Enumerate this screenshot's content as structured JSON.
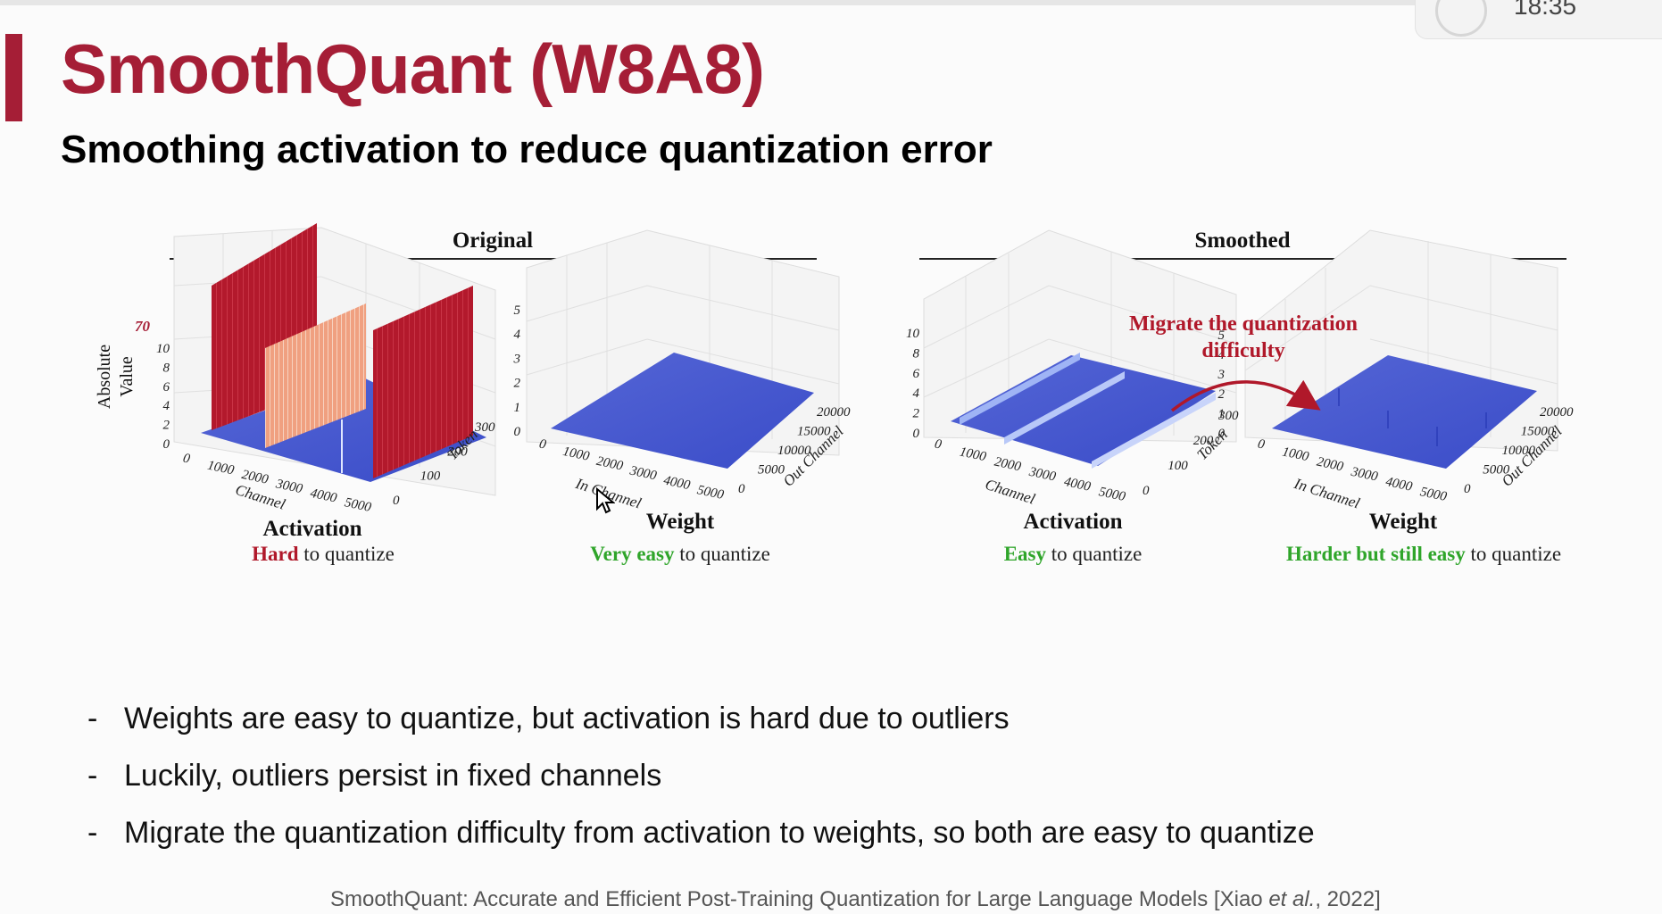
{
  "slide": {
    "title": "SmoothQuant (W8A8)",
    "subtitle": "Smoothing activation to reduce quantization error",
    "clock": "18:35",
    "accent_color": "#a51e36"
  },
  "figure": {
    "original_label": "Original",
    "smoothed_label": "Smoothed",
    "migrate_label_1": "Migrate the quantization",
    "migrate_label_2": "difficulty",
    "y_axis_label_1": "Absolute",
    "y_axis_label_2": "Value",
    "outlier_value": "70",
    "panels": {
      "orig_act": {
        "name": "Activation",
        "verdict_colored": "Hard",
        "verdict_rest": " to quantize",
        "verdict_color": "#b0182a"
      },
      "orig_wt": {
        "name": "Weight",
        "verdict_colored": "Very easy",
        "verdict_rest": " to quantize",
        "verdict_color": "#2fa52a"
      },
      "smooth_act": {
        "name": "Activation",
        "verdict_colored": "Easy",
        "verdict_rest": " to quantize",
        "verdict_color": "#2fa52a"
      },
      "smooth_wt": {
        "name": "Weight",
        "verdict_colored": "Harder but still easy",
        "verdict_rest": " to quantize",
        "verdict_color": "#2fa52a"
      }
    },
    "axis_titles": {
      "channel": "Channel",
      "token": "Token",
      "in_channel": "In Channel",
      "out_channel": "Out Channel"
    },
    "ticks": {
      "act_x": [
        "0",
        "1000",
        "2000",
        "3000",
        "4000",
        "5000"
      ],
      "act_y": [
        "0",
        "100",
        "200",
        "300"
      ],
      "act_z": [
        "0",
        "2",
        "4",
        "6",
        "8",
        "10"
      ],
      "wt_x": [
        "0",
        "1000",
        "2000",
        "3000",
        "4000",
        "5000"
      ],
      "wt_y": [
        "0",
        "5000",
        "10000",
        "15000",
        "20000"
      ],
      "wt_z": [
        "0",
        "1",
        "2",
        "3",
        "4",
        "5"
      ]
    }
  },
  "bullets": [
    "Weights are easy to quantize, but activation is hard due to outliers",
    "Luckily, outliers persist in fixed channels",
    "Migrate the quantization difficulty from activation to weights, so both are easy to quantize"
  ],
  "citation": {
    "prefix": "SmoothQuant: Accurate and Efficient Post-Training Quantization for Large Language Models [Xiao ",
    "etal": "et al.",
    "suffix": ", 2022]"
  }
}
